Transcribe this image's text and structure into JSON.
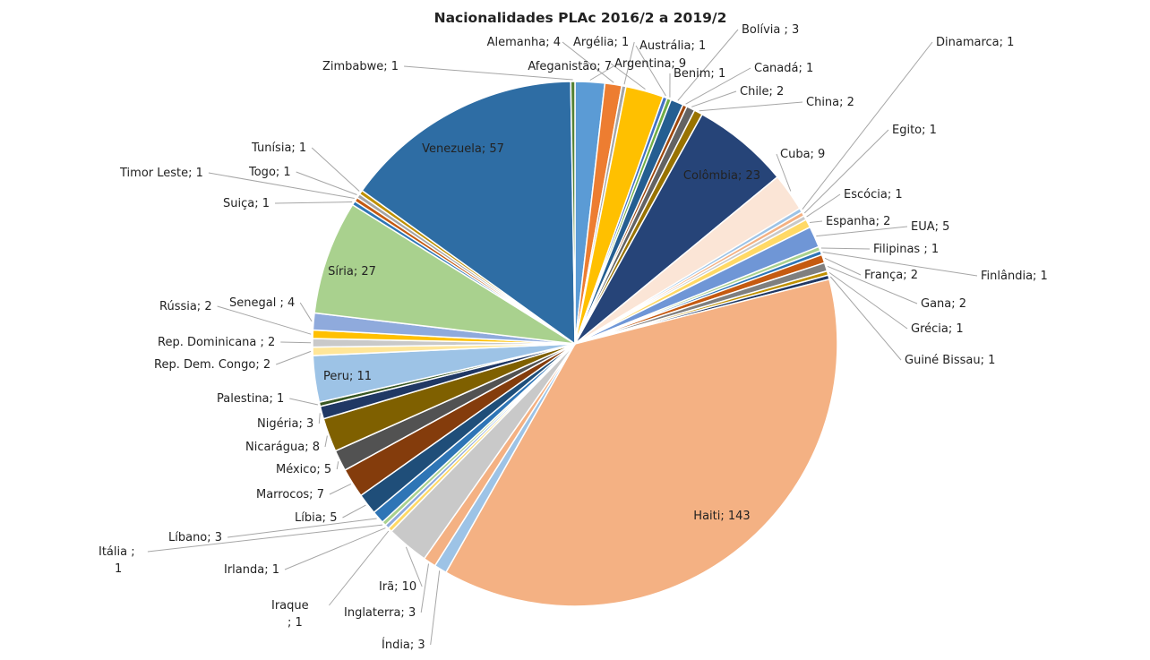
{
  "chart_data": {
    "type": "pie",
    "title": "Nacionalidades PLAc 2016/2 a 2019/2",
    "slices": [
      {
        "label": "Afeganistão; 7",
        "value": 7,
        "color": "#5b9bd5"
      },
      {
        "label": "Alemanha; 4",
        "value": 4,
        "color": "#ed7d31"
      },
      {
        "label": "Argélia; 1",
        "value": 1,
        "color": "#a5a5a5"
      },
      {
        "label": "Argentina; 9",
        "value": 9,
        "color": "#ffc000"
      },
      {
        "label": "Austrália; 1",
        "value": 1,
        "color": "#4472c4"
      },
      {
        "label": "Benim; 1",
        "value": 1,
        "color": "#70ad47"
      },
      {
        "label": "Bolívia ; 3",
        "value": 3,
        "color": "#255e91"
      },
      {
        "label": "Canadá; 1",
        "value": 1,
        "color": "#9e480e"
      },
      {
        "label": "Chile; 2",
        "value": 2,
        "color": "#636363"
      },
      {
        "label": "China; 2",
        "value": 2,
        "color": "#997300"
      },
      {
        "label": "Colômbia; 23",
        "value": 23,
        "color": "#264478"
      },
      {
        "label": "Cuba; 9",
        "value": 9,
        "color": "#fbe5d6"
      },
      {
        "label": "Dinamarca; 1",
        "value": 1,
        "color": "#9dc3e6"
      },
      {
        "label": "Egito; 1",
        "value": 1,
        "color": "#f4b183"
      },
      {
        "label": "Escócia; 1",
        "value": 1,
        "color": "#c9c9c9"
      },
      {
        "label": "Espanha; 2",
        "value": 2,
        "color": "#ffd966"
      },
      {
        "label": "EUA; 5",
        "value": 5,
        "color": "#6f96d6"
      },
      {
        "label": "Filipinas ; 1",
        "value": 1,
        "color": "#a9d18e"
      },
      {
        "label": "Finlândia; 1",
        "value": 1,
        "color": "#2e75b6"
      },
      {
        "label": "França; 2",
        "value": 2,
        "color": "#c55a11"
      },
      {
        "label": "Gana; 2",
        "value": 2,
        "color": "#7f7f7f"
      },
      {
        "label": "Grécia; 1",
        "value": 1,
        "color": "#bf9000"
      },
      {
        "label": "Guiné Bissau; 1",
        "value": 1,
        "color": "#203864"
      },
      {
        "label": "Haiti; 143",
        "value": 143,
        "color": "#f4b183"
      },
      {
        "label": "Índia; 3",
        "value": 3,
        "color": "#9dc3e6"
      },
      {
        "label": "Inglaterra; 3",
        "value": 3,
        "color": "#f4b183"
      },
      {
        "label": "Irã; 10",
        "value": 10,
        "color": "#c9c9c9"
      },
      {
        "label": "Iraque\n; 1",
        "value": 1,
        "color": "#ffd966"
      },
      {
        "label": "Irlanda; 1",
        "value": 1,
        "color": "#8faadc"
      },
      {
        "label": "Itália ;\n1",
        "value": 1,
        "color": "#a9d18e"
      },
      {
        "label": "Líbano; 3",
        "value": 3,
        "color": "#2e75b6"
      },
      {
        "label": "Líbia; 5",
        "value": 5,
        "color": "#1f4e79"
      },
      {
        "label": "Marrocos; 7",
        "value": 7,
        "color": "#843c0c"
      },
      {
        "label": "México; 5",
        "value": 5,
        "color": "#525252"
      },
      {
        "label": "Nicarágua; 8",
        "value": 8,
        "color": "#7f6000"
      },
      {
        "label": "Nigéria; 3",
        "value": 3,
        "color": "#203864"
      },
      {
        "label": "Palestina; 1",
        "value": 1,
        "color": "#385723"
      },
      {
        "label": "Peru; 11",
        "value": 11,
        "color": "#9dc3e6"
      },
      {
        "label": "Rep. Dem. Congo; 2",
        "value": 2,
        "color": "#ffe699"
      },
      {
        "label": "Rep. Dominicana ; 2",
        "value": 2,
        "color": "#c9c9c9"
      },
      {
        "label": "Rússia; 2",
        "value": 2,
        "color": "#ffc000"
      },
      {
        "label": "Senegal ; 4",
        "value": 4,
        "color": "#8faadc"
      },
      {
        "label": "Síria; 27",
        "value": 27,
        "color": "#a9d18e"
      },
      {
        "label": "Suiça; 1",
        "value": 1,
        "color": "#2e75b6"
      },
      {
        "label": "Timor Leste; 1",
        "value": 1,
        "color": "#c55a11"
      },
      {
        "label": "Togo; 1",
        "value": 1,
        "color": "#a5a5a5"
      },
      {
        "label": "Tunísia; 1",
        "value": 1,
        "color": "#bf9000"
      },
      {
        "label": "Venezuela; 57",
        "value": 57,
        "color": "#2e6da4"
      },
      {
        "label": "Zimbabwe; 1",
        "value": 1,
        "color": "#548235"
      }
    ]
  }
}
